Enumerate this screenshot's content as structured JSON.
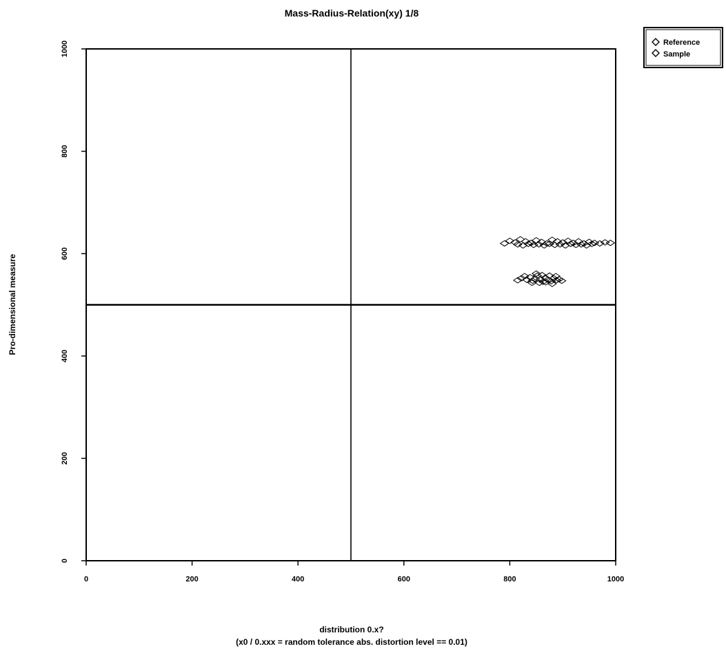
{
  "chart_data": {
    "type": "scatter",
    "title": "Mass-Radius-Relation(xy) 1/8",
    "xlabel": "distribution 0.x?",
    "xlabel_line2": "(x0 / 0.xxx = random tolerance abs. distortion level == 0.01)",
    "ylabel": "Pro-dimensional measure",
    "xlim": [
      0,
      1000
    ],
    "ylim": [
      0,
      1000
    ],
    "x_ticks": [
      "0",
      "200",
      "400",
      "600",
      "800",
      "1000"
    ],
    "y_ticks": [
      "0",
      "200",
      "400",
      "600",
      "800",
      "1000"
    ],
    "crosshair": {
      "x": 500,
      "y": 500
    },
    "grid": false,
    "legend_position": "top-right outside",
    "series": [
      {
        "name": "Reference",
        "color": "#000000",
        "marker": "diamond",
        "points": [
          [
            790,
            620
          ],
          [
            800,
            625
          ],
          [
            810,
            622
          ],
          [
            820,
            628
          ],
          [
            830,
            624
          ],
          [
            840,
            621
          ],
          [
            850,
            626
          ],
          [
            860,
            623
          ],
          [
            870,
            620
          ],
          [
            880,
            627
          ],
          [
            890,
            624
          ],
          [
            900,
            622
          ],
          [
            910,
            625
          ],
          [
            920,
            621
          ],
          [
            930,
            624
          ],
          [
            940,
            620
          ],
          [
            950,
            623
          ],
          [
            960,
            621
          ],
          [
            970,
            620
          ],
          [
            980,
            622
          ],
          [
            990,
            621
          ],
          [
            815,
            618
          ],
          [
            825,
            616
          ],
          [
            835,
            619
          ],
          [
            845,
            617
          ],
          [
            855,
            618
          ],
          [
            865,
            616
          ],
          [
            875,
            619
          ],
          [
            885,
            617
          ],
          [
            895,
            618
          ],
          [
            905,
            616
          ],
          [
            915,
            619
          ],
          [
            925,
            617
          ],
          [
            935,
            618
          ],
          [
            945,
            616
          ],
          [
            955,
            619
          ]
        ]
      },
      {
        "name": "Sample",
        "color": "#000000",
        "marker": "diamond",
        "points": [
          [
            815,
            548
          ],
          [
            822,
            552
          ],
          [
            828,
            556
          ],
          [
            832,
            549
          ],
          [
            838,
            554
          ],
          [
            843,
            547
          ],
          [
            848,
            551
          ],
          [
            852,
            557
          ],
          [
            858,
            550
          ],
          [
            863,
            545
          ],
          [
            867,
            553
          ],
          [
            872,
            549
          ],
          [
            878,
            546
          ],
          [
            883,
            552
          ],
          [
            888,
            548
          ],
          [
            893,
            550
          ],
          [
            898,
            547
          ],
          [
            842,
            543
          ],
          [
            850,
            561
          ],
          [
            856,
            543
          ],
          [
            861,
            558
          ],
          [
            868,
            544
          ],
          [
            875,
            557
          ],
          [
            880,
            541
          ],
          [
            887,
            556
          ]
        ]
      }
    ]
  }
}
